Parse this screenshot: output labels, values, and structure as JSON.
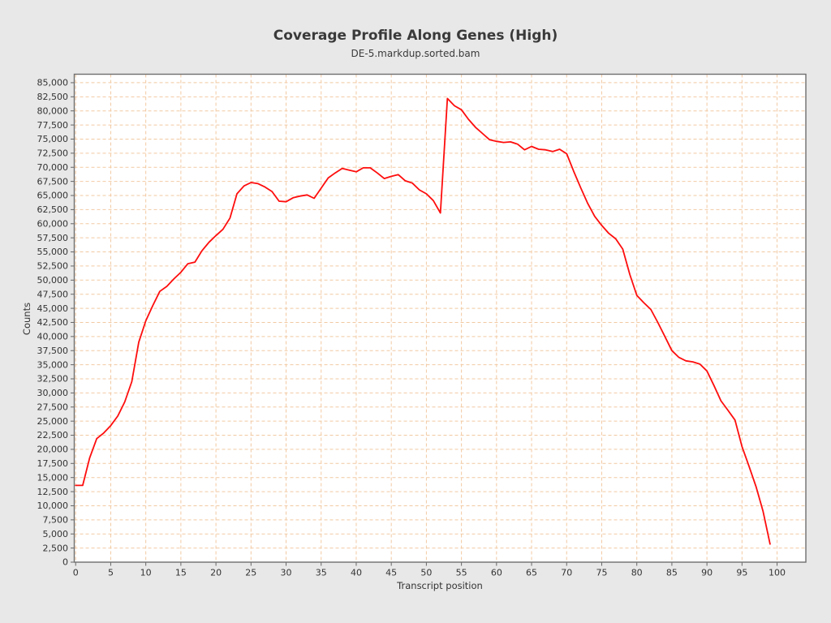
{
  "chart_data": {
    "type": "line",
    "title": "Coverage Profile Along Genes (High)",
    "subtitle": "DE-5.markdup.sorted.bam",
    "xlabel": "Transcript position",
    "ylabel": "Counts",
    "legend": "none",
    "grid": true,
    "background": "#e8e8e8",
    "plot_background": "#ffffff",
    "frame_color": "#6f6f6f",
    "grid_color": "#f2c9a2",
    "tick_color": "#666666",
    "series_color": "#fe0d0d",
    "xlim": [
      -0.2,
      104.1
    ],
    "ylim": [
      0,
      86500
    ],
    "x_ticks": [
      0,
      5,
      10,
      15,
      20,
      25,
      30,
      35,
      40,
      45,
      50,
      55,
      60,
      65,
      70,
      75,
      80,
      85,
      90,
      95,
      100
    ],
    "y_ticks": [
      0,
      2500,
      5000,
      7500,
      10000,
      12500,
      15000,
      17500,
      20000,
      22500,
      25000,
      27500,
      30000,
      32500,
      35000,
      37500,
      40000,
      42500,
      45000,
      47500,
      50000,
      52500,
      55000,
      57500,
      60000,
      62500,
      65000,
      67500,
      70000,
      72500,
      75000,
      77500,
      80000,
      82500,
      85000
    ],
    "x": [
      0,
      1,
      2,
      3,
      4,
      5,
      6,
      7,
      8,
      9,
      10,
      11,
      12,
      13,
      14,
      15,
      16,
      17,
      18,
      19,
      20,
      21,
      22,
      23,
      24,
      25,
      26,
      27,
      28,
      29,
      30,
      31,
      32,
      33,
      34,
      35,
      36,
      37,
      38,
      39,
      40,
      41,
      42,
      43,
      44,
      45,
      46,
      47,
      48,
      49,
      50,
      51,
      52,
      53,
      54,
      55,
      56,
      57,
      58,
      59,
      60,
      61,
      62,
      63,
      64,
      65,
      66,
      67,
      68,
      69,
      70,
      71,
      72,
      73,
      74,
      75,
      76,
      77,
      78,
      79,
      80,
      81,
      82,
      83,
      84,
      85,
      86,
      87,
      88,
      89,
      90,
      91,
      92,
      93,
      94,
      95,
      96,
      97,
      98,
      99
    ],
    "values": [
      13600,
      13600,
      18500,
      21900,
      22900,
      24200,
      25900,
      28400,
      32000,
      39000,
      42800,
      45500,
      48000,
      48900,
      50200,
      51400,
      52900,
      53200,
      55200,
      56700,
      57900,
      59000,
      61000,
      65300,
      66700,
      67300,
      67100,
      66500,
      65700,
      64000,
      63900,
      64600,
      64900,
      65100,
      64500,
      66300,
      68100,
      69000,
      69800,
      69500,
      69200,
      69900,
      69900,
      69000,
      68000,
      68400,
      68700,
      67600,
      67200,
      66000,
      65300,
      64100,
      61900,
      82200,
      80900,
      80200,
      78500,
      77100,
      76000,
      74900,
      74600,
      74400,
      74500,
      74100,
      73100,
      73700,
      73200,
      73100,
      72800,
      73200,
      72400,
      69300,
      66400,
      63600,
      61300,
      59700,
      58300,
      57300,
      55500,
      51000,
      47300,
      46000,
      44800,
      42500,
      40000,
      37500,
      36300,
      35700,
      35500,
      35100,
      33900,
      31300,
      28600,
      26900,
      25200,
      20500,
      17000,
      13400,
      9000,
      3200
    ]
  }
}
